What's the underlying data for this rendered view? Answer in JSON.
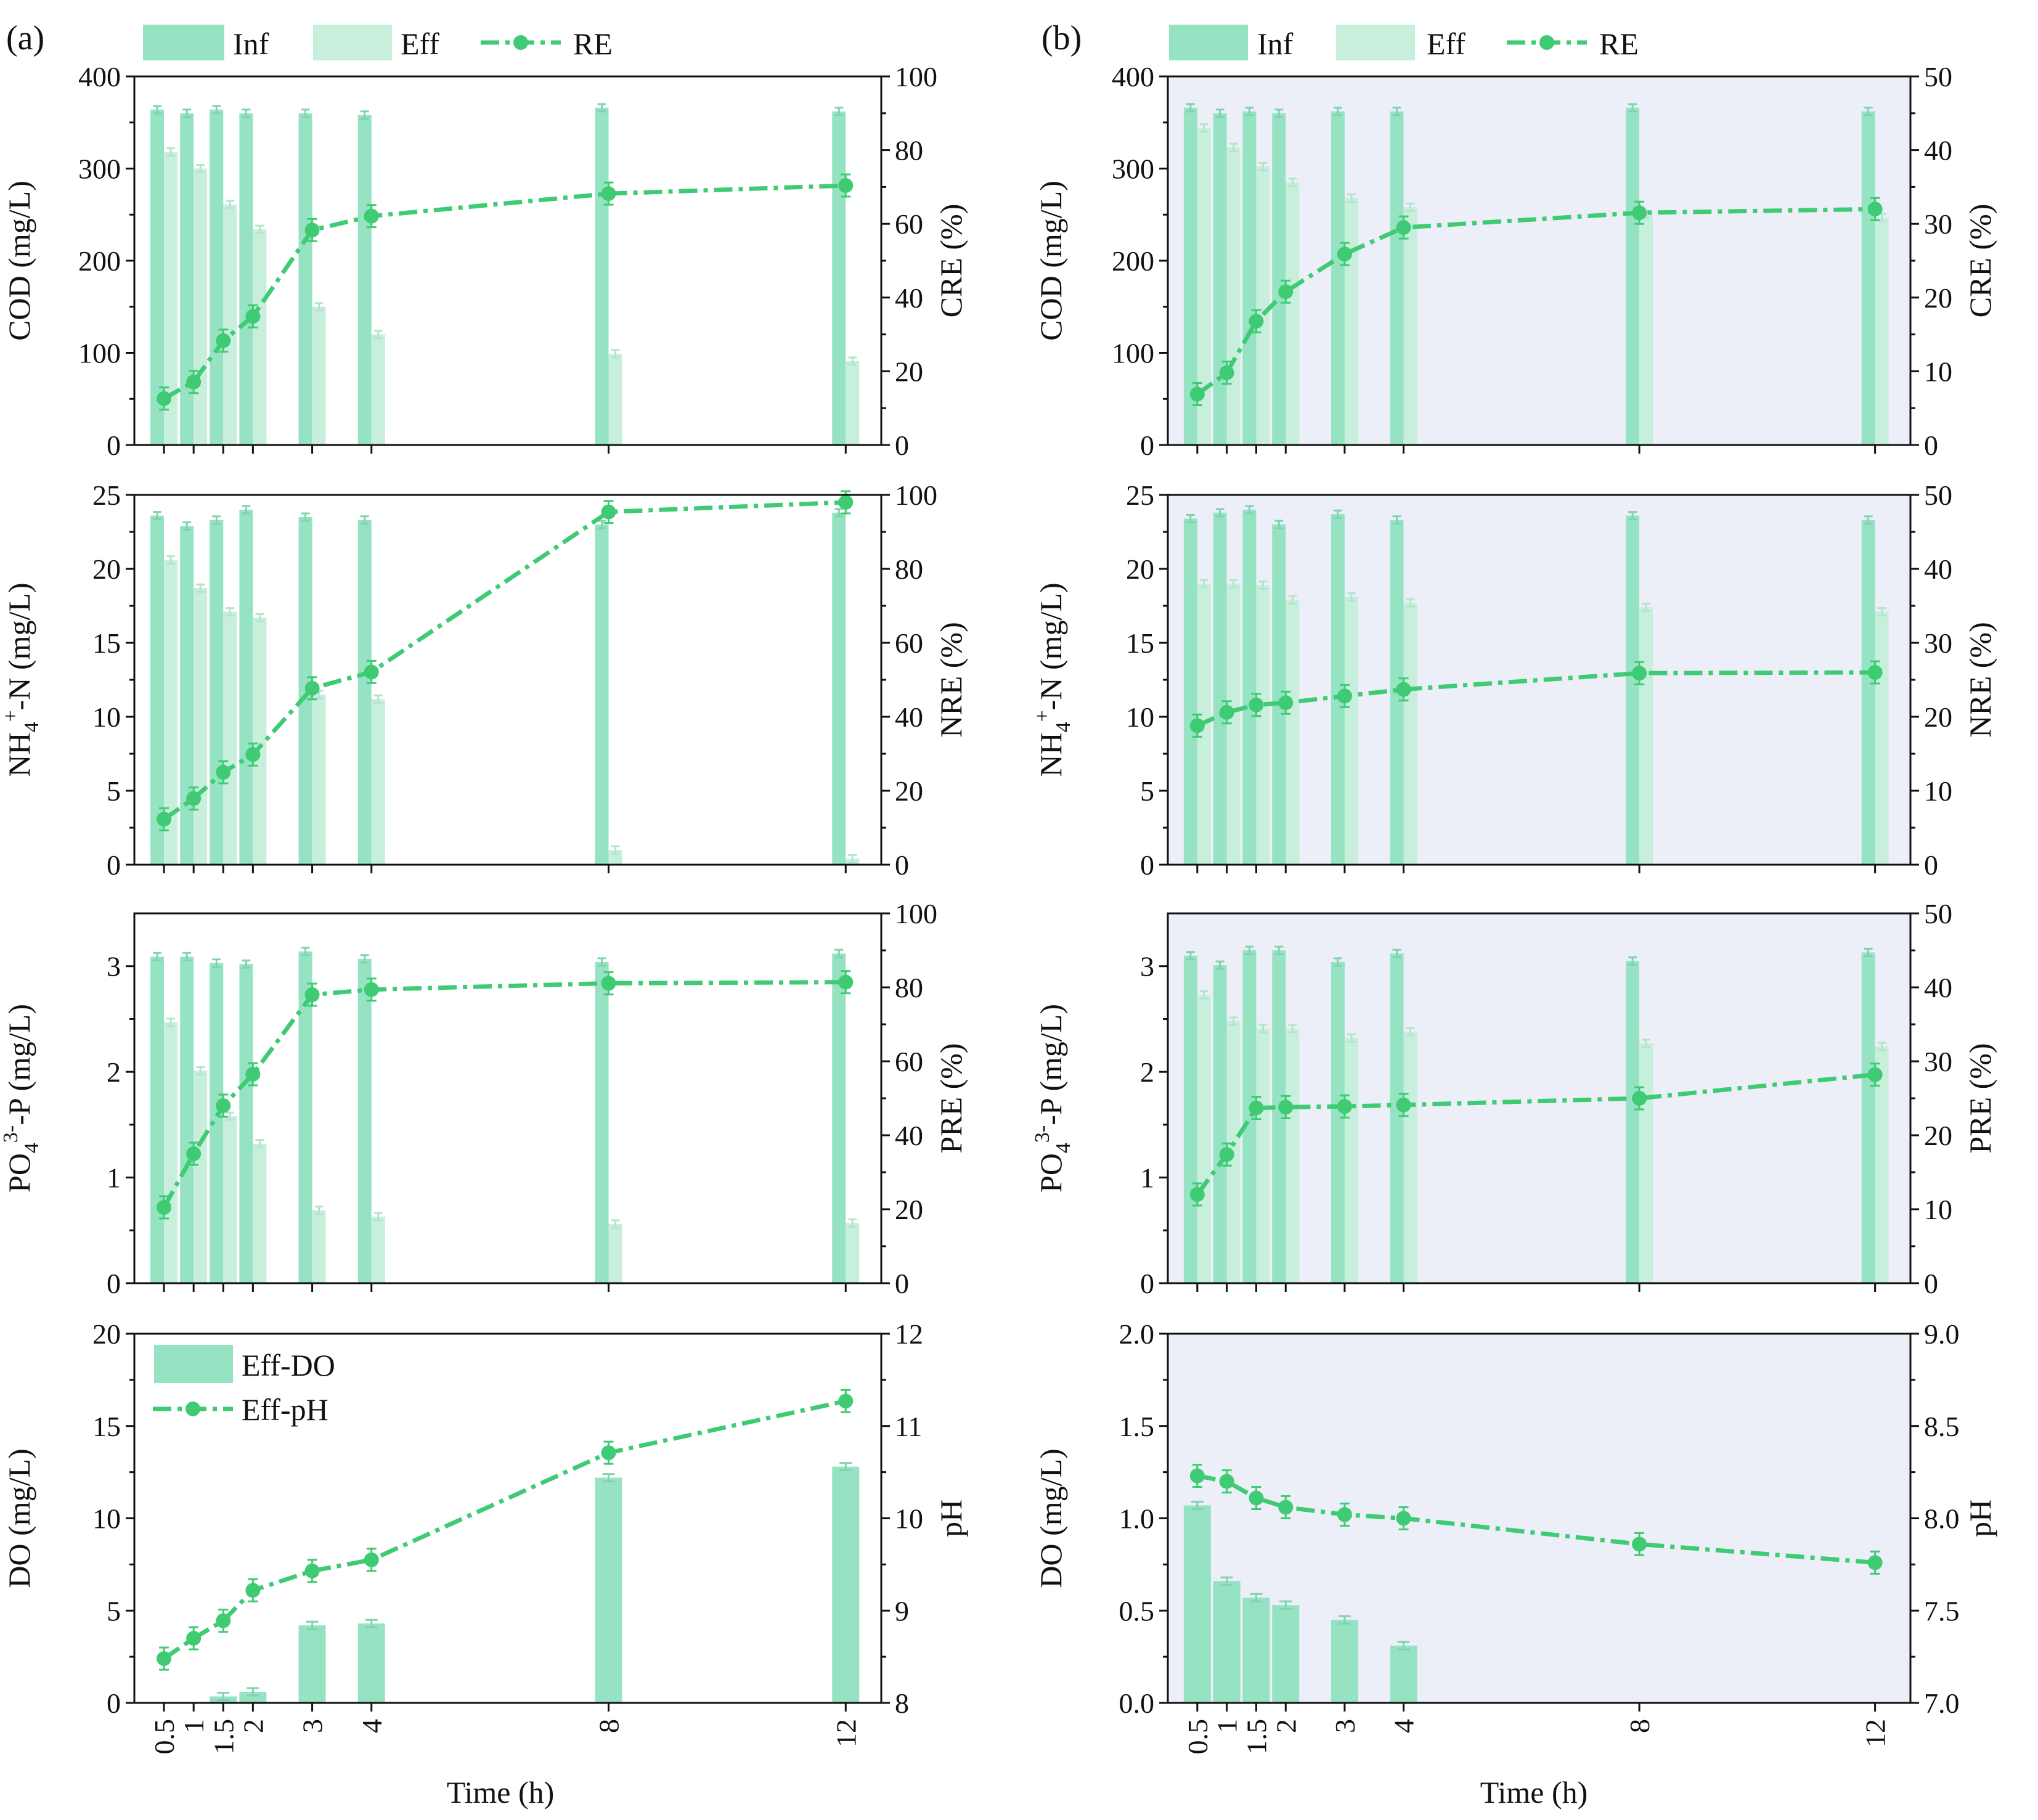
{
  "colors": {
    "inf": "#96e3c3",
    "eff": "#c7efdc",
    "line": "#3ecb74",
    "panel_bg_b": "#eceff8",
    "axis": "#111111"
  },
  "figure_labels": [
    "(a)",
    "(b)"
  ],
  "legend_top": {
    "inf": "Inf",
    "eff": "Eff",
    "re": "RE"
  },
  "legend_bottom": {
    "do": "Eff-DO",
    "ph": "Eff-pH"
  },
  "xaxis": {
    "title": "Time (h)",
    "ticks": [
      0.5,
      1,
      1.5,
      2,
      3,
      4,
      8,
      12
    ],
    "tick_labels": [
      "0.5",
      "1",
      "1.5",
      "2",
      "3",
      "4",
      "8",
      "12"
    ],
    "range": [
      0,
      12.6
    ]
  },
  "chart_data": [
    {
      "id": "a-cod",
      "column": "(a)",
      "type": "bar+line",
      "ylabel": "COD  (mg/L)",
      "y2label": "CRE (%)",
      "ylim": [
        0,
        400
      ],
      "yticks": [
        0,
        100,
        200,
        300,
        400
      ],
      "y2lim": [
        0,
        100
      ],
      "y2ticks": [
        0,
        20,
        40,
        60,
        80,
        100
      ],
      "x": [
        0.5,
        1,
        1.5,
        2,
        3,
        4,
        8,
        12
      ],
      "series": [
        {
          "name": "Inf",
          "values": [
            364,
            360,
            364,
            360,
            360,
            358,
            366,
            362
          ]
        },
        {
          "name": "Eff",
          "values": [
            318,
            300,
            261,
            234,
            150,
            120,
            99,
            91
          ]
        },
        {
          "name": "RE",
          "values": [
            12.6,
            17.1,
            28.3,
            34.9,
            58.3,
            62.1,
            68.2,
            70.4
          ]
        }
      ]
    },
    {
      "id": "a-nh4",
      "column": "(a)",
      "type": "bar+line",
      "ylabel": "NH4+-N  (mg/L)",
      "y2label": "NRE (%)",
      "ylim": [
        0,
        25
      ],
      "yticks": [
        0,
        5,
        10,
        15,
        20,
        25
      ],
      "y2lim": [
        0,
        100
      ],
      "y2ticks": [
        0,
        20,
        40,
        60,
        80,
        100
      ],
      "x": [
        0.5,
        1,
        1.5,
        2,
        3,
        4,
        8,
        12
      ],
      "series": [
        {
          "name": "Inf",
          "values": [
            23.6,
            22.9,
            23.3,
            24.0,
            23.5,
            23.3,
            23.0,
            23.8
          ]
        },
        {
          "name": "Eff",
          "values": [
            20.6,
            18.7,
            17.1,
            16.7,
            11.5,
            11.2,
            1.0,
            0.4
          ]
        },
        {
          "name": "RE",
          "values": [
            12.3,
            17.9,
            25.0,
            29.8,
            47.7,
            52.1,
            95.4,
            98.0
          ]
        }
      ]
    },
    {
      "id": "a-po4",
      "column": "(a)",
      "type": "bar+line",
      "ylabel": "PO43--P  (mg/L)",
      "y2label": "PRE (%)",
      "ylim": [
        0,
        3.5
      ],
      "yticks": [
        0,
        1,
        2,
        3
      ],
      "y2lim": [
        0,
        100
      ],
      "y2ticks": [
        0,
        20,
        40,
        60,
        80,
        100
      ],
      "x": [
        0.5,
        1,
        1.5,
        2,
        3,
        4,
        8,
        12
      ],
      "series": [
        {
          "name": "Inf",
          "values": [
            3.09,
            3.09,
            3.03,
            3.02,
            3.14,
            3.07,
            3.04,
            3.12
          ]
        },
        {
          "name": "Eff",
          "values": [
            2.47,
            2.01,
            1.58,
            1.32,
            0.69,
            0.63,
            0.56,
            0.57
          ]
        },
        {
          "name": "RE",
          "values": [
            20.5,
            35.0,
            48.0,
            56.5,
            78.0,
            79.4,
            81.1,
            81.4
          ]
        }
      ]
    },
    {
      "id": "a-do-ph",
      "column": "(a)",
      "type": "bar+line",
      "ylabel": "DO  (mg/L)",
      "y2label": "pH",
      "ylim": [
        0,
        20
      ],
      "yticks": [
        0,
        5,
        10,
        15,
        20
      ],
      "y2lim": [
        8,
        12
      ],
      "y2ticks": [
        8,
        9,
        10,
        11,
        12
      ],
      "x": [
        0.5,
        1,
        1.5,
        2,
        3,
        4,
        8,
        12
      ],
      "series": [
        {
          "name": "Eff-DO",
          "values": [
            0,
            0,
            0.35,
            0.6,
            4.2,
            4.3,
            12.2,
            12.8
          ]
        },
        {
          "name": "Eff-pH",
          "values": [
            8.48,
            8.7,
            8.89,
            9.22,
            9.43,
            9.55,
            10.71,
            11.27
          ]
        }
      ]
    },
    {
      "id": "b-cod",
      "column": "(b)",
      "type": "bar+line",
      "ylabel": "COD  (mg/L)",
      "y2label": "CRE (%)",
      "ylim": [
        0,
        400
      ],
      "yticks": [
        0,
        100,
        200,
        300,
        400
      ],
      "y2lim": [
        0,
        50
      ],
      "y2ticks": [
        0,
        10,
        20,
        30,
        40,
        50
      ],
      "x": [
        0.5,
        1,
        1.5,
        2,
        3,
        4,
        8,
        12
      ],
      "series": [
        {
          "name": "Inf",
          "values": [
            366,
            360,
            362,
            360,
            362,
            362,
            366,
            362
          ]
        },
        {
          "name": "Eff",
          "values": [
            344,
            323,
            302,
            285,
            268,
            258,
            250,
            247
          ]
        },
        {
          "name": "RE",
          "values": [
            6.9,
            9.8,
            16.8,
            20.8,
            25.9,
            29.5,
            31.5,
            32.0
          ]
        }
      ]
    },
    {
      "id": "b-nh4",
      "column": "(b)",
      "type": "bar+line",
      "ylabel": "NH4+-N  (mg/L)",
      "y2label": "NRE (%)",
      "ylim": [
        0,
        25
      ],
      "yticks": [
        0,
        5,
        10,
        15,
        20,
        25
      ],
      "y2lim": [
        0,
        50
      ],
      "y2ticks": [
        0,
        10,
        20,
        30,
        40,
        50
      ],
      "x": [
        0.5,
        1,
        1.5,
        2,
        3,
        4,
        8,
        12
      ],
      "series": [
        {
          "name": "Inf",
          "values": [
            23.4,
            23.8,
            24.0,
            23.0,
            23.7,
            23.3,
            23.6,
            23.3
          ]
        },
        {
          "name": "Eff",
          "values": [
            19.0,
            19.0,
            18.9,
            17.9,
            18.1,
            17.7,
            17.4,
            17.1
          ]
        },
        {
          "name": "RE",
          "values": [
            18.8,
            20.6,
            21.6,
            21.9,
            22.8,
            23.7,
            25.9,
            26.0
          ]
        }
      ]
    },
    {
      "id": "b-po4",
      "column": "(b)",
      "type": "bar+line",
      "ylabel": "PO43--P  (mg/L)",
      "y2label": "PRE (%)",
      "ylim": [
        0,
        3.5
      ],
      "yticks": [
        0,
        1,
        2,
        3
      ],
      "y2lim": [
        0,
        50
      ],
      "y2ticks": [
        0,
        10,
        20,
        30,
        40,
        50
      ],
      "x": [
        0.5,
        1,
        1.5,
        2,
        3,
        4,
        8,
        12
      ],
      "series": [
        {
          "name": "Inf",
          "values": [
            3.1,
            3.01,
            3.15,
            3.15,
            3.04,
            3.12,
            3.05,
            3.13
          ]
        },
        {
          "name": "Eff",
          "values": [
            2.73,
            2.48,
            2.41,
            2.41,
            2.32,
            2.38,
            2.27,
            2.24
          ]
        },
        {
          "name": "RE",
          "values": [
            12.0,
            17.4,
            23.7,
            23.8,
            23.9,
            24.1,
            25.0,
            28.2
          ]
        }
      ]
    },
    {
      "id": "b-do-ph",
      "column": "(b)",
      "type": "bar+line",
      "ylabel": "DO  (mg/L)",
      "y2label": "pH",
      "ylim": [
        0,
        2.0
      ],
      "yticks": [
        0.0,
        0.5,
        1.0,
        1.5,
        2.0
      ],
      "ytick_labels": [
        "0.0",
        "0.5",
        "1.0",
        "1.5",
        "2.0"
      ],
      "y2lim": [
        7.0,
        9.0
      ],
      "y2ticks": [
        7.0,
        7.5,
        8.0,
        8.5,
        9.0
      ],
      "y2tick_labels": [
        "7.0",
        "7.5",
        "8.0",
        "8.5",
        "9.0"
      ],
      "x": [
        0.5,
        1,
        1.5,
        2,
        3,
        4,
        8,
        12
      ],
      "series": [
        {
          "name": "Eff-DO",
          "values": [
            1.07,
            0.66,
            0.57,
            0.53,
            0.45,
            0.31,
            0,
            0
          ]
        },
        {
          "name": "Eff-pH",
          "values": [
            8.23,
            8.2,
            8.11,
            8.06,
            8.02,
            8.0,
            7.86,
            7.76
          ]
        }
      ]
    }
  ]
}
